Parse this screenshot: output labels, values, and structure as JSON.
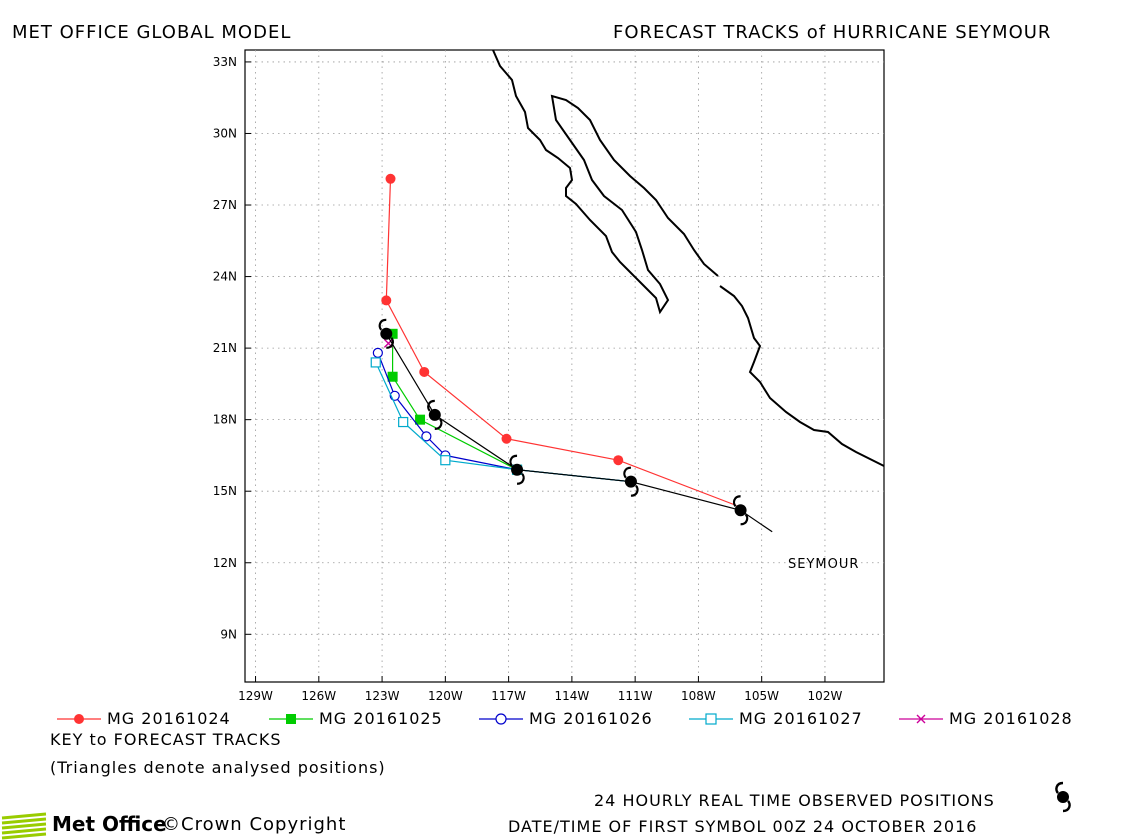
{
  "header": {
    "left_title": "MET OFFICE GLOBAL MODEL",
    "right_title": "FORECAST TRACKS of HURRICANE SEYMOUR"
  },
  "map": {
    "lat_ticks": [
      {
        "lat": 33,
        "label": "33N"
      },
      {
        "lat": 30,
        "label": "30N"
      },
      {
        "lat": 27,
        "label": "27N"
      },
      {
        "lat": 24,
        "label": "24N"
      },
      {
        "lat": 21,
        "label": "21N"
      },
      {
        "lat": 18,
        "label": "18N"
      },
      {
        "lat": 15,
        "label": "15N"
      },
      {
        "lat": 12,
        "label": "12N"
      },
      {
        "lat": 9,
        "label": "9N"
      }
    ],
    "lon_ticks": [
      {
        "lon": -129,
        "label": "129W"
      },
      {
        "lon": -126,
        "label": "126W"
      },
      {
        "lon": -123,
        "label": "123W"
      },
      {
        "lon": -120,
        "label": "120W"
      },
      {
        "lon": -117,
        "label": "117W"
      },
      {
        "lon": -114,
        "label": "114W"
      },
      {
        "lon": -111,
        "label": "111W"
      },
      {
        "lon": -108,
        "label": "108W"
      },
      {
        "lon": -105,
        "label": "105W"
      },
      {
        "lon": -102,
        "label": "102W"
      }
    ],
    "lon_range": [
      -129.5,
      -99.2
    ],
    "lat_range": [
      7.0,
      33.5
    ],
    "grid": "dotted",
    "storm_label": "SEYMOUR",
    "land_color": "#000000"
  },
  "tracks": [
    {
      "name": "MG 20161024",
      "color": "#ff3333",
      "marker": "filled-circle",
      "points": [
        [
          -106.2,
          14.4
        ],
        [
          -111.8,
          16.3
        ],
        [
          -117.1,
          17.2
        ],
        [
          -121.0,
          20.0
        ],
        [
          -122.8,
          23.0
        ],
        [
          -122.6,
          28.1
        ]
      ]
    },
    {
      "name": "MG 20161025",
      "color": "#00cc00",
      "marker": "filled-square",
      "points": [
        [
          -111.2,
          15.4
        ],
        [
          -116.6,
          15.9
        ],
        [
          -121.2,
          18.0
        ],
        [
          -122.5,
          19.8
        ],
        [
          -122.5,
          21.6
        ]
      ]
    },
    {
      "name": "MG 20161026",
      "color": "#0000cc",
      "marker": "open-circle",
      "points": [
        [
          -111.2,
          15.4
        ],
        [
          -116.6,
          15.9
        ],
        [
          -120.0,
          16.5
        ],
        [
          -120.9,
          17.3
        ],
        [
          -122.4,
          19.0
        ],
        [
          -123.2,
          20.8
        ]
      ]
    },
    {
      "name": "MG 20161027",
      "color": "#00aacc",
      "marker": "open-square",
      "points": [
        [
          -111.2,
          15.4
        ],
        [
          -116.6,
          15.9
        ],
        [
          -120.0,
          16.3
        ],
        [
          -122.0,
          17.9
        ],
        [
          -123.3,
          20.4
        ]
      ]
    },
    {
      "name": "MG 20161028",
      "color": "#cc0099",
      "marker": "x-cross",
      "points": [
        [
          -122.7,
          21.2
        ]
      ]
    }
  ],
  "observed": {
    "points": [
      [
        -104.5,
        13.3
      ],
      [
        -106.0,
        14.2
      ],
      [
        -111.2,
        15.4
      ],
      [
        -116.6,
        15.9
      ],
      [
        -120.5,
        18.2
      ],
      [
        -122.8,
        21.6
      ]
    ]
  },
  "legend_key": "KEY to FORECAST TRACKS",
  "legend_note": "(Triangles denote analysed positions)",
  "footer": {
    "observed_caption": "24 HOURLY REAL TIME OBSERVED POSITIONS",
    "datetime_caption": "DATE/TIME OF FIRST SYMBOL 00Z 24 OCTOBER 2016",
    "logo_text": "Met Office",
    "copyright": "©Crown Copyright"
  }
}
